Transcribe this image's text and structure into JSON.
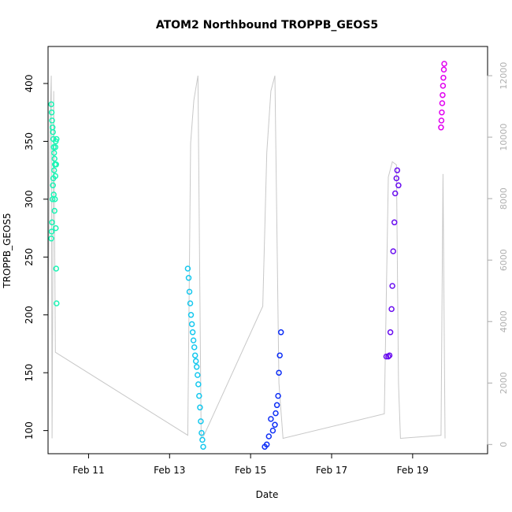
{
  "chart_data": {
    "type": "scatter",
    "title": "ATOM2 Northbound TROPPB_GEOS5",
    "xlabel": "Date",
    "ylabel": "TROPPB_GEOS5",
    "x_unit": "days in February",
    "xlim": [
      10.0,
      20.85
    ],
    "ylim": [
      80,
      432
    ],
    "y2lim": [
      -300,
      12950
    ],
    "x_ticks": [
      {
        "value": 11,
        "label": "Feb 11"
      },
      {
        "value": 13,
        "label": "Feb 13"
      },
      {
        "value": 15,
        "label": "Feb 15"
      },
      {
        "value": 17,
        "label": "Feb 17"
      },
      {
        "value": 19,
        "label": "Feb 19"
      }
    ],
    "y_ticks": [
      100,
      150,
      200,
      250,
      300,
      350,
      400
    ],
    "y2_ticks": [
      0,
      2000,
      4000,
      6000,
      8000,
      10000,
      12000
    ],
    "grid": false,
    "series": [
      {
        "color": "#19F5B5",
        "x": [
          10.08,
          10.08,
          10.09,
          10.09,
          10.1,
          10.1,
          10.11,
          10.11,
          10.12,
          10.12,
          10.13,
          10.13,
          10.14,
          10.14,
          10.15,
          10.15,
          10.16,
          10.16,
          10.17,
          10.17,
          10.18,
          10.18,
          10.19,
          10.19,
          10.2,
          10.2,
          10.21,
          10.21
        ],
        "y": [
          266,
          382,
          272,
          375,
          280,
          368,
          300,
          362,
          312,
          358,
          318,
          352,
          304,
          345,
          325,
          340,
          290,
          335,
          330,
          300,
          320,
          345,
          275,
          350,
          240,
          330,
          210,
          352
        ]
      },
      {
        "color": "#16C8EE",
        "x": [
          13.45,
          13.47,
          13.49,
          13.51,
          13.53,
          13.55,
          13.57,
          13.59,
          13.61,
          13.63,
          13.65,
          13.67,
          13.69,
          13.71,
          13.73,
          13.75,
          13.77,
          13.79,
          13.81,
          13.83
        ],
        "y": [
          240,
          232,
          220,
          210,
          200,
          192,
          185,
          178,
          172,
          165,
          160,
          155,
          148,
          140,
          130,
          120,
          108,
          98,
          92,
          86
        ]
      },
      {
        "color": "#0E2FF6",
        "x": [
          15.35,
          15.4,
          15.45,
          15.5,
          15.55,
          15.6,
          15.62,
          15.65,
          15.68,
          15.7,
          15.72,
          15.75
        ],
        "y": [
          86,
          88,
          95,
          110,
          100,
          105,
          115,
          122,
          130,
          150,
          165,
          185
        ]
      },
      {
        "color": "#6A0EF0",
        "x": [
          18.35,
          18.4,
          18.43,
          18.45,
          18.48,
          18.5,
          18.52,
          18.55,
          18.57,
          18.6,
          18.62,
          18.65
        ],
        "y": [
          164,
          164,
          165,
          185,
          205,
          225,
          255,
          280,
          305,
          318,
          325,
          312
        ]
      },
      {
        "color": "#E100F0",
        "x": [
          19.7,
          19.71,
          19.72,
          19.73,
          19.74,
          19.75,
          19.76,
          19.77,
          19.78
        ],
        "y": [
          362,
          368,
          375,
          383,
          390,
          398,
          405,
          412,
          417
        ]
      }
    ],
    "altitude_trace": {
      "color": "#c8c8c8",
      "x": [
        10.0,
        10.05,
        10.08,
        10.1,
        10.14,
        10.18,
        13.45,
        13.52,
        13.6,
        13.7,
        13.78,
        13.85,
        15.3,
        15.4,
        15.5,
        15.6,
        15.7,
        15.8,
        18.3,
        18.4,
        18.5,
        18.6,
        18.65,
        18.7,
        19.7,
        19.75,
        19.8
      ],
      "y": [
        4000,
        10500,
        12000,
        200,
        11500,
        3000,
        300,
        9800,
        11200,
        12000,
        200,
        300,
        4500,
        9500,
        11500,
        12000,
        2000,
        200,
        1000,
        8700,
        9200,
        9100,
        2000,
        200,
        300,
        8800,
        200
      ]
    }
  }
}
